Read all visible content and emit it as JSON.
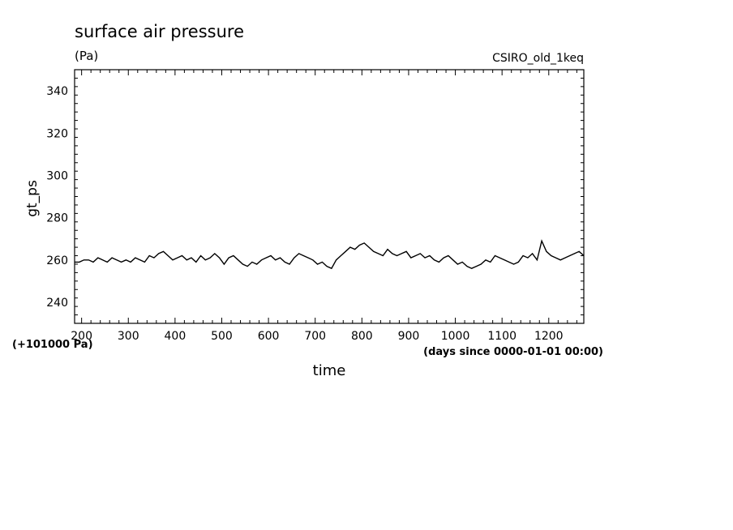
{
  "chart_data": {
    "type": "line",
    "title": "surface air pressure",
    "units": "(Pa)",
    "experiment": "CSIRO_old_1keq",
    "ylabel": "gt_ps",
    "xlabel": "time",
    "y_offset_note": "(+101000 Pa)",
    "x_units_note": "(days since 0000-01-01 00:00)",
    "xlim": [
      185,
      1275
    ],
    "ylim": [
      230,
      350
    ],
    "xticks": [
      200,
      300,
      400,
      500,
      600,
      700,
      800,
      900,
      1000,
      1100,
      1200
    ],
    "yticks": [
      240,
      260,
      280,
      300,
      320,
      340
    ],
    "grid": false,
    "series": [
      {
        "color": "#000000",
        "x": [
          185,
          195,
          205,
          215,
          225,
          235,
          245,
          255,
          265,
          275,
          285,
          295,
          305,
          315,
          325,
          335,
          345,
          355,
          365,
          375,
          385,
          395,
          405,
          415,
          425,
          435,
          445,
          455,
          465,
          475,
          485,
          495,
          505,
          515,
          525,
          535,
          545,
          555,
          565,
          575,
          585,
          595,
          605,
          615,
          625,
          635,
          645,
          655,
          665,
          675,
          685,
          695,
          705,
          715,
          725,
          735,
          745,
          755,
          765,
          775,
          785,
          795,
          805,
          815,
          825,
          835,
          845,
          855,
          865,
          875,
          885,
          895,
          905,
          915,
          925,
          935,
          945,
          955,
          965,
          975,
          985,
          995,
          1005,
          1015,
          1025,
          1035,
          1045,
          1055,
          1065,
          1075,
          1085,
          1095,
          1105,
          1115,
          1125,
          1135,
          1145,
          1155,
          1165,
          1175,
          1185,
          1195,
          1205,
          1215,
          1225,
          1235,
          1245,
          1255,
          1265,
          1275
        ],
        "y": [
          259,
          259,
          260,
          260,
          259,
          261,
          260,
          259,
          261,
          260,
          259,
          260,
          259,
          261,
          260,
          259,
          262,
          261,
          263,
          264,
          262,
          260,
          261,
          262,
          260,
          261,
          259,
          262,
          260,
          261,
          263,
          261,
          258,
          261,
          262,
          260,
          258,
          257,
          259,
          258,
          260,
          261,
          262,
          260,
          261,
          259,
          258,
          261,
          263,
          262,
          261,
          260,
          258,
          259,
          257,
          256,
          260,
          262,
          264,
          266,
          265,
          267,
          268,
          266,
          264,
          263,
          262,
          265,
          263,
          262,
          263,
          264,
          261,
          262,
          263,
          261,
          262,
          260,
          259,
          261,
          262,
          260,
          258,
          259,
          257,
          256,
          257,
          258,
          260,
          259,
          262,
          261,
          260,
          259,
          258,
          259,
          262,
          261,
          263,
          260,
          269,
          264,
          262,
          261,
          260,
          261,
          262,
          263,
          264,
          262
        ]
      }
    ]
  }
}
